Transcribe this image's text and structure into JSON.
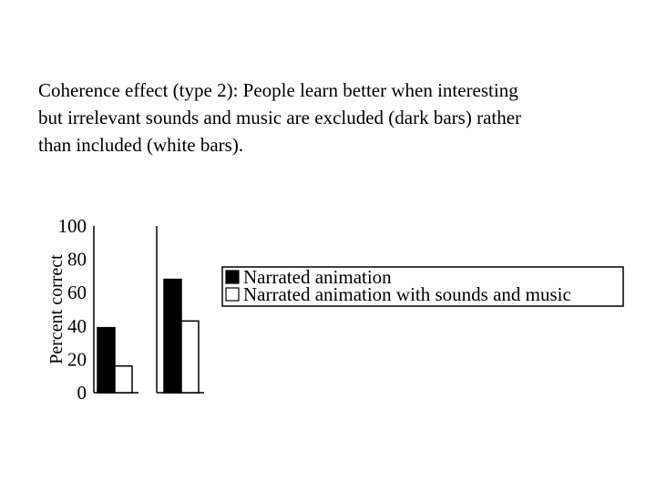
{
  "caption": {
    "lines": [
      "Coherence effect (type 2): People learn better when interesting",
      "but irrelevant sounds and music are excluded (dark bars) rather",
      "than included (white bars)."
    ]
  },
  "chart_data": [
    {
      "type": "bar",
      "title": "",
      "xlabel": "",
      "ylabel": "Percent correct",
      "ylim": [
        0,
        100
      ],
      "yticks": [
        "100",
        "80",
        "60",
        "40",
        "20",
        "0"
      ],
      "categories": [
        "",
        ""
      ],
      "series": [
        {
          "name": "Narrated animation",
          "values": [
            39,
            68
          ],
          "color": "#000000"
        },
        {
          "name": "Narrated animation with sounds and music",
          "values": [
            16,
            43
          ],
          "color": "#ffffff"
        }
      ],
      "grid": false,
      "legend_position": "right"
    }
  ]
}
